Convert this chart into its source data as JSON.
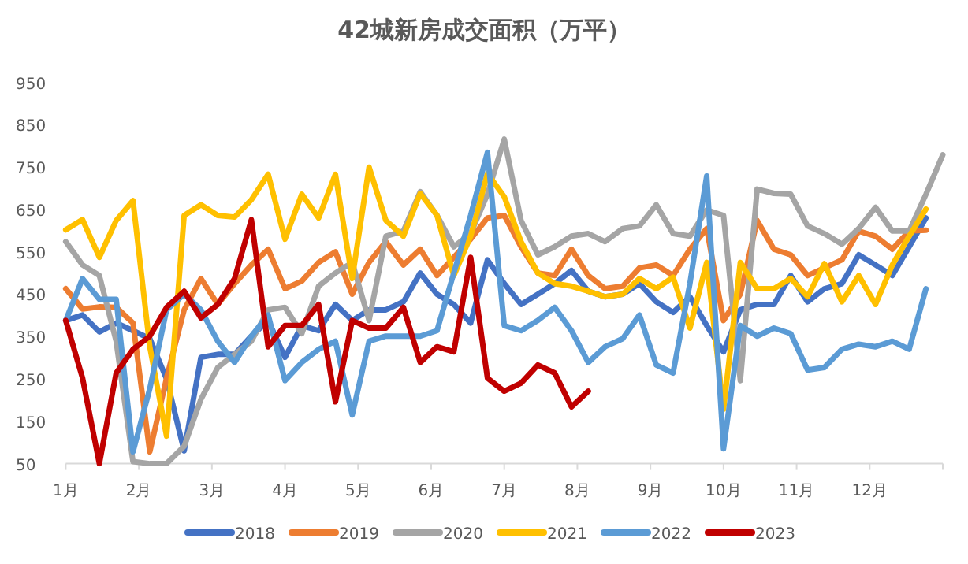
{
  "chart_data": {
    "type": "line",
    "title": "42城新房成交面积（万平）",
    "x": [
      1,
      1.23,
      1.46,
      1.69,
      1.92,
      2.15,
      2.38,
      2.62,
      2.85,
      3.08,
      3.31,
      3.54,
      3.77,
      4,
      4.23,
      4.46,
      4.69,
      4.92,
      5.15,
      5.38,
      5.62,
      5.85,
      6.08,
      6.31,
      6.54,
      6.77,
      7,
      7.23,
      7.46,
      7.69,
      7.92,
      8.15,
      8.38,
      8.62,
      8.85,
      9.08,
      9.31,
      9.54,
      9.77,
      10,
      10.23,
      10.46,
      10.69,
      10.92,
      11.15,
      11.38,
      11.62,
      11.85,
      12.08,
      12.31,
      12.54,
      12.77
    ],
    "xlim": [
      1,
      13
    ],
    "xticks": [
      {
        "value": 1,
        "label": "1月"
      },
      {
        "value": 2,
        "label": "2月"
      },
      {
        "value": 3,
        "label": "3月"
      },
      {
        "value": 4,
        "label": "4月"
      },
      {
        "value": 5,
        "label": "5月"
      },
      {
        "value": 6,
        "label": "6月"
      },
      {
        "value": 7,
        "label": "7月"
      },
      {
        "value": 8,
        "label": "8月"
      },
      {
        "value": 9,
        "label": "9月"
      },
      {
        "value": 10,
        "label": "10月"
      },
      {
        "value": 11,
        "label": "11月"
      },
      {
        "value": 12,
        "label": "12月"
      },
      {
        "value": 13,
        "label": null
      }
    ],
    "ylim": [
      50,
      950
    ],
    "yticks": [
      50,
      150,
      250,
      350,
      450,
      550,
      650,
      750,
      850,
      950
    ],
    "grid": false,
    "legend": "bottom",
    "marker": "none",
    "line_style": "solid",
    "series": [
      {
        "name": "2018",
        "color": "#4472c4",
        "values": [
          388,
          401,
          361,
          382,
          364,
          345,
          250,
          80,
          301,
          308,
          308,
          351,
          388,
          301,
          376,
          364,
          426,
          388,
          413,
          413,
          432,
          500,
          450,
          426,
          382,
          531,
          475,
          426,
          450,
          475,
          506,
          457,
          444,
          450,
          475,
          432,
          407,
          444,
          376,
          314,
          413,
          426,
          426,
          494,
          432,
          463,
          475,
          543,
          519,
          494,
          562,
          630
        ]
      },
      {
        "name": "2019",
        "color": "#ed7d31",
        "values": [
          463,
          415,
          420,
          419,
          382,
          78,
          252,
          413,
          487,
          426,
          475,
          519,
          556,
          463,
          481,
          525,
          550,
          450,
          525,
          574,
          519,
          556,
          494,
          537,
          580,
          630,
          636,
          562,
          500,
          494,
          556,
          494,
          463,
          469,
          512,
          519,
          494,
          556,
          605,
          388,
          450,
          624,
          556,
          543,
          494,
          512,
          531,
          599,
          587,
          556,
          599,
          601
        ]
      },
      {
        "name": "2020",
        "color": "#a5a5a5",
        "x": [
          1,
          1.23,
          1.46,
          1.69,
          1.92,
          2.15,
          2.38,
          2.62,
          2.85,
          3.08,
          3.31,
          3.54,
          3.77,
          4,
          4.23,
          4.46,
          4.69,
          4.92,
          5.15,
          5.38,
          5.62,
          5.85,
          6.08,
          6.31,
          6.54,
          6.77,
          7,
          7.23,
          7.46,
          7.69,
          7.92,
          8.15,
          8.38,
          8.62,
          8.85,
          9.08,
          9.31,
          9.54,
          9.77,
          10,
          10.23,
          10.46,
          10.69,
          10.92,
          11.15,
          11.38,
          11.62,
          11.85,
          12.08,
          12.31,
          12.54,
          12.77,
          13
        ],
        "values": [
          574,
          519,
          494,
          339,
          55,
          50,
          50,
          91,
          202,
          277,
          308,
          339,
          413,
          419,
          357,
          469,
          500,
          525,
          388,
          587,
          599,
          692,
          636,
          562,
          593,
          686,
          816,
          624,
          543,
          562,
          587,
          593,
          574,
          605,
          611,
          661,
          593,
          587,
          649,
          636,
          246,
          698,
          688,
          686,
          611,
          593,
          568,
          605,
          655,
          599,
          599,
          686,
          779
        ]
      },
      {
        "name": "2021",
        "color": "#ffc000",
        "values": [
          602,
          626,
          537,
          624,
          671,
          326,
          115,
          636,
          661,
          636,
          632,
          673,
          733,
          580,
          686,
          630,
          733,
          487,
          750,
          624,
          587,
          688,
          636,
          494,
          587,
          735,
          680,
          574,
          500,
          475,
          469,
          457,
          444,
          450,
          487,
          463,
          490,
          370,
          525,
          178,
          525,
          463,
          463,
          487,
          444,
          522,
          432,
          494,
          426,
          519,
          587,
          651
        ]
      },
      {
        "name": "2022",
        "color": "#5b9bd5",
        "values": [
          388,
          487,
          438,
          438,
          78,
          227,
          413,
          450,
          413,
          339,
          289,
          351,
          401,
          246,
          289,
          320,
          339,
          165,
          339,
          351,
          351,
          351,
          364,
          500,
          636,
          785,
          376,
          364,
          388,
          419,
          364,
          289,
          326,
          345,
          401,
          283,
          264,
          475,
          729,
          85,
          376,
          351,
          370,
          357,
          271,
          277,
          320,
          332,
          326,
          339,
          320,
          463
        ]
      },
      {
        "name": "2023",
        "color": "#c00000",
        "values": [
          388,
          252,
          50,
          264,
          320,
          351,
          419,
          457,
          394,
          426,
          487,
          626,
          326,
          376,
          376,
          426,
          196,
          388,
          370,
          370,
          419,
          289,
          326,
          314,
          537,
          252,
          221,
          240,
          283,
          264,
          184,
          221,
          null,
          null,
          null,
          null,
          null,
          null,
          null,
          null,
          null,
          null,
          null,
          null,
          null,
          null,
          null,
          null,
          null,
          null,
          null,
          null
        ]
      }
    ]
  }
}
